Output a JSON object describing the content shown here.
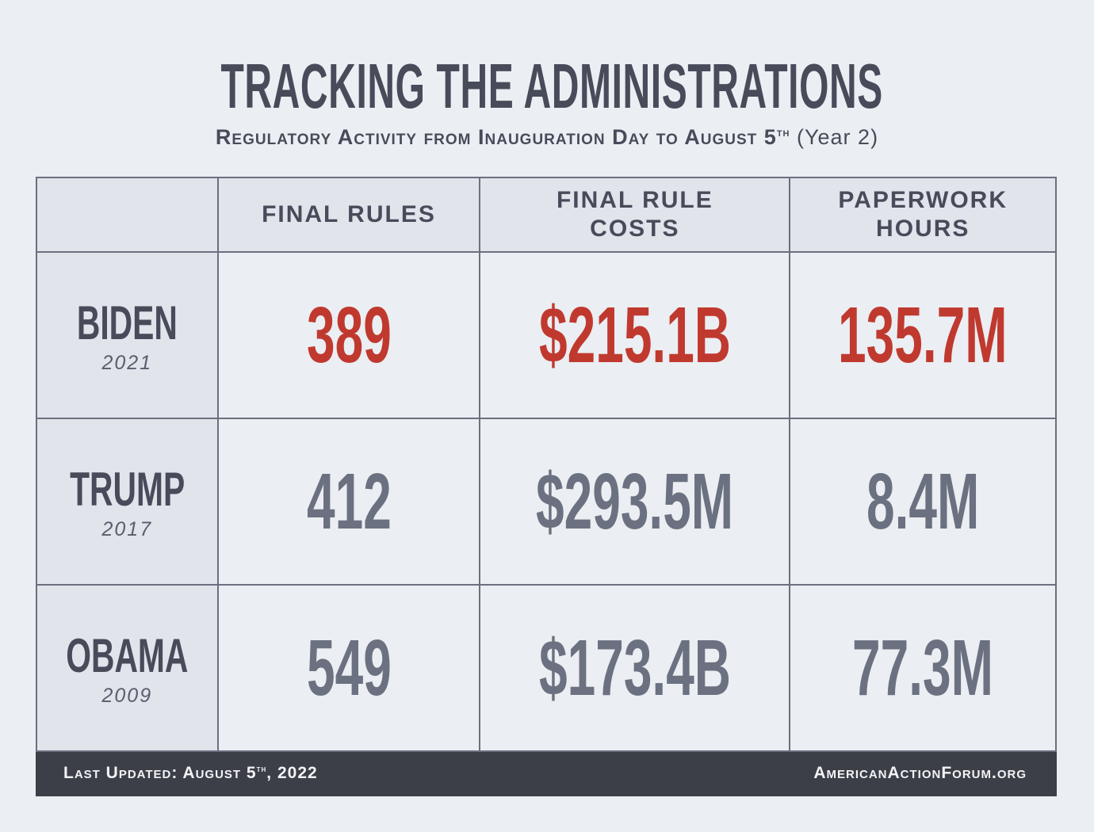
{
  "title": "TRACKING THE ADMINISTRATIONS",
  "subtitle": {
    "main": "Regulatory Activity from Inauguration Day to August 5",
    "sup": "th",
    "tail": "(Year 2)"
  },
  "colors": {
    "highlight": "#c0392f",
    "normal": "#6b7180",
    "text": "#484b59",
    "footer_bg": "#3c3f48"
  },
  "chart_data": {
    "type": "table",
    "columns": [
      "",
      "FINAL RULES",
      "FINAL RULE COSTS",
      "PAPERWORK HOURS"
    ],
    "rows": [
      {
        "name": "BIDEN",
        "year": "2021",
        "values": [
          "389",
          "$215.1B",
          "135.7M"
        ],
        "highlight": true
      },
      {
        "name": "TRUMP",
        "year": "2017",
        "values": [
          "412",
          "$293.5M",
          "8.4M"
        ],
        "highlight": false
      },
      {
        "name": "OBAMA",
        "year": "2009",
        "values": [
          "549",
          "$173.4B",
          "77.3M"
        ],
        "highlight": false
      }
    ]
  },
  "footer": {
    "updated": "Last Updated: August 5",
    "updated_sup": "th",
    "updated_year": ", 2022",
    "site": "AmericanActionForum.org"
  }
}
